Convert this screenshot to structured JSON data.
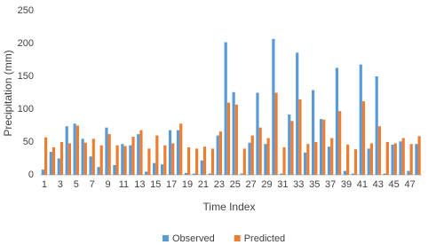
{
  "chart_data": {
    "type": "bar",
    "x_label": "Time Index",
    "y_label": "Precipitation (mm)",
    "categories": [
      "1",
      null,
      "3",
      null,
      "5",
      null,
      "7",
      null,
      "9",
      null,
      "11",
      null,
      "13",
      null,
      "15",
      null,
      "17",
      null,
      "19",
      null,
      "21",
      null,
      "23",
      null,
      "25",
      null,
      "27",
      null,
      "29",
      null,
      "31",
      null,
      "33",
      null,
      "35",
      null,
      "37",
      null,
      "39",
      null,
      "41",
      null,
      "43",
      null,
      "45",
      null,
      "47",
      null
    ],
    "series": [
      {
        "name": "Observed",
        "color": "#5b9bd5",
        "values": [
          8,
          35,
          25,
          74,
          78,
          55,
          28,
          12,
          72,
          15,
          47,
          45,
          62,
          5,
          18,
          16,
          68,
          68,
          3,
          2,
          22,
          2,
          60,
          202,
          126,
          2,
          49,
          125,
          47,
          207,
          2,
          92,
          186,
          34,
          129,
          85,
          43,
          163,
          6,
          2,
          168,
          40,
          150,
          2,
          46,
          51,
          6,
          47
        ]
      },
      {
        "name": "Predicted",
        "color": "#ed7d31",
        "values": [
          57,
          42,
          50,
          48,
          75,
          49,
          55,
          45,
          62,
          45,
          44,
          58,
          68,
          40,
          60,
          45,
          48,
          78,
          42,
          40,
          43,
          40,
          66,
          110,
          107,
          40,
          60,
          72,
          56,
          125,
          42,
          82,
          115,
          47,
          50,
          84,
          56,
          97,
          46,
          39,
          112,
          48,
          74,
          50,
          48,
          56,
          47,
          59
        ]
      }
    ],
    "ylim": [
      0,
      250
    ],
    "yticks": [
      0,
      50,
      100,
      150,
      200,
      250
    ],
    "grid": false,
    "legend": "bottom"
  }
}
